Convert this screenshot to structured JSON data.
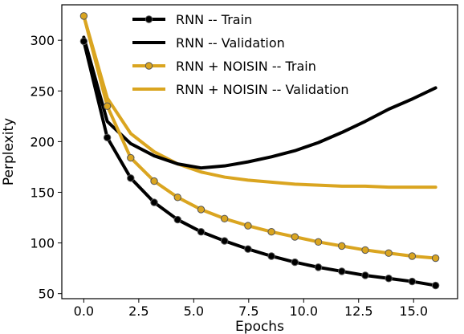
{
  "chart_data": {
    "type": "line",
    "title": "",
    "xlabel": "Epochs",
    "ylabel": "Perplexity",
    "xlim": [
      -1.0,
      17.0
    ],
    "ylim": [
      45,
      335
    ],
    "xticks": [
      0.0,
      2.5,
      5.0,
      7.5,
      10.0,
      12.5,
      15.0
    ],
    "xtick_labels": [
      "0.0",
      "2.5",
      "5.0",
      "7.5",
      "10.0",
      "12.5",
      "15.0"
    ],
    "yticks": [
      50,
      100,
      150,
      200,
      250,
      300
    ],
    "ytick_labels": [
      "50",
      "100",
      "150",
      "200",
      "250",
      "300"
    ],
    "grid": false,
    "legend_position": "top-center",
    "series": [
      {
        "name": "RNN -- Train",
        "color": "#000000",
        "marker": "circle",
        "x": [
          0.0,
          1.067,
          2.133,
          3.2,
          4.267,
          5.333,
          6.4,
          7.467,
          8.533,
          9.6,
          10.667,
          11.733,
          12.8,
          13.867,
          14.933,
          16.0
        ],
        "y": [
          299,
          204,
          164,
          140,
          123,
          111,
          102,
          94,
          87,
          81,
          76,
          72,
          68,
          65,
          62,
          58
        ]
      },
      {
        "name": "RNN -- Validation",
        "color": "#000000",
        "marker": "none",
        "x": [
          0.0,
          1.067,
          2.133,
          3.2,
          4.267,
          5.333,
          6.4,
          7.467,
          8.533,
          9.6,
          10.667,
          11.733,
          12.8,
          13.867,
          14.933,
          16.0
        ],
        "y": [
          303,
          220,
          198,
          186,
          178,
          174,
          176,
          180,
          185,
          191,
          199,
          209,
          220,
          232,
          242,
          253
        ]
      },
      {
        "name": "RNN + NOISIN -- Train",
        "color": "#DAA520",
        "marker": "circle",
        "x": [
          0.0,
          1.067,
          2.133,
          3.2,
          4.267,
          5.333,
          6.4,
          7.467,
          8.533,
          9.6,
          10.667,
          11.733,
          12.8,
          13.867,
          14.933,
          16.0
        ],
        "y": [
          324,
          235,
          184,
          161,
          145,
          133,
          124,
          117,
          111,
          106,
          101,
          97,
          93,
          90,
          87,
          85
        ]
      },
      {
        "name": "RNN + NOISIN -- Validation",
        "color": "#DAA520",
        "marker": "none",
        "x": [
          0.0,
          1.067,
          2.133,
          3.2,
          4.267,
          5.333,
          6.4,
          7.467,
          8.533,
          9.6,
          10.667,
          11.733,
          12.8,
          13.867,
          14.933,
          16.0
        ],
        "y": [
          324,
          243,
          208,
          190,
          178,
          170,
          165,
          162,
          160,
          158,
          157,
          156,
          156,
          155,
          155,
          155
        ]
      }
    ]
  }
}
